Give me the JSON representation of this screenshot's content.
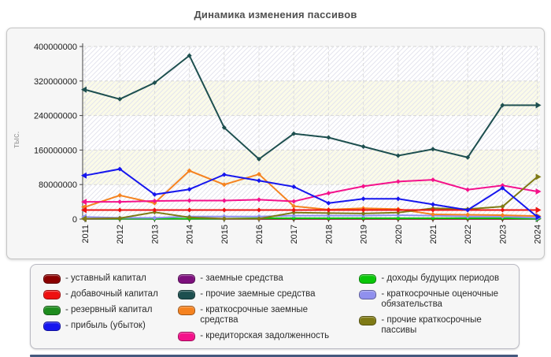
{
  "legend": {
    "separator": "-",
    "columns": [
      [
        0,
        1,
        2,
        3
      ],
      [
        4,
        5,
        6,
        7
      ],
      [
        8,
        9,
        10
      ]
    ]
  },
  "chart_data": {
    "type": "line",
    "title": "Динамика изменения пассивов",
    "ylabel": "тыс.",
    "xlabel": "",
    "x": [
      "2011",
      "2012",
      "2013",
      "2014",
      "2015",
      "2016",
      "2017",
      "2018",
      "2019",
      "2020",
      "2021",
      "2022",
      "2023",
      "2024"
    ],
    "ylim": [
      0,
      400000000
    ],
    "yticks": [
      0,
      80000000,
      160000000,
      240000000,
      320000000,
      400000000
    ],
    "grid": true,
    "legend_position": "bottom",
    "plot_band_colors": [
      "#ffffff",
      "#fbfbe8"
    ],
    "series": [
      {
        "name": "уставный капитал",
        "color": "#8b0000",
        "values": [
          1000000,
          1000000,
          1000000,
          1000000,
          1000000,
          1000000,
          1000000,
          1000000,
          1000000,
          1000000,
          1000000,
          1000000,
          1000000,
          1000000
        ]
      },
      {
        "name": "добавочный капитал",
        "color": "#ee1111",
        "values": [
          21000000,
          21000000,
          21000000,
          21000000,
          21000000,
          21000000,
          21000000,
          21000000,
          21000000,
          21000000,
          21000000,
          21000000,
          21000000,
          21000000
        ]
      },
      {
        "name": "резервный капитал",
        "color": "#1e8c1e",
        "values": [
          600000,
          600000,
          600000,
          600000,
          600000,
          600000,
          600000,
          600000,
          600000,
          600000,
          600000,
          600000,
          600000,
          600000
        ]
      },
      {
        "name": "прибыль (убыток)",
        "color": "#1616ee",
        "values": [
          101000000,
          116000000,
          57000000,
          69000000,
          103000000,
          89000000,
          75000000,
          37000000,
          47000000,
          47000000,
          34000000,
          21000000,
          72000000,
          5000000
        ]
      },
      {
        "name": "заемные средства",
        "color": "#7d107d",
        "values": [
          400000,
          400000,
          400000,
          400000,
          400000,
          400000,
          400000,
          400000,
          400000,
          400000,
          400000,
          400000,
          400000,
          400000
        ]
      },
      {
        "name": "прочие заемные средства",
        "color": "#1d4f4f",
        "values": [
          300000000,
          278000000,
          316000000,
          379000000,
          212000000,
          139000000,
          198000000,
          189000000,
          168000000,
          147000000,
          162000000,
          143000000,
          264000000,
          264000000
        ]
      },
      {
        "name": "краткосрочные заемные средства",
        "color": "#f5821f",
        "values": [
          28000000,
          55000000,
          37000000,
          112000000,
          80000000,
          104000000,
          30000000,
          22000000,
          25000000,
          23000000,
          11000000,
          10000000,
          9000000,
          7000000
        ]
      },
      {
        "name": "кредиторская задолженность",
        "color": "#f4128b",
        "values": [
          40000000,
          40000000,
          42000000,
          43000000,
          43000000,
          45000000,
          41000000,
          60000000,
          76000000,
          87000000,
          91000000,
          68000000,
          78000000,
          64000000
        ]
      },
      {
        "name": "доходы будущих периодов",
        "color": "#09c609",
        "values": [
          1000000,
          1000000,
          1000000,
          1000000,
          1000000,
          2000000,
          2000000,
          2000000,
          2000000,
          2000000,
          2000000,
          2000000,
          2000000,
          1000000
        ]
      },
      {
        "name": "краткосрочные оценочные обязательства",
        "color": "#9090ee",
        "values": [
          5000000,
          3000000,
          3000000,
          6000000,
          6000000,
          6000000,
          8000000,
          8000000,
          8000000,
          9000000,
          8000000,
          6000000,
          6000000,
          3000000
        ]
      },
      {
        "name": "прочие краткосрочные пассивы",
        "color": "#7f7a15",
        "values": [
          1000000,
          2000000,
          16000000,
          4000000,
          1000000,
          1000000,
          15000000,
          14000000,
          13000000,
          15000000,
          25000000,
          23000000,
          29000000,
          98000000
        ]
      }
    ],
    "draw_order": [
      2,
      4,
      0,
      8,
      9,
      6,
      7,
      10,
      1,
      3,
      5
    ]
  }
}
